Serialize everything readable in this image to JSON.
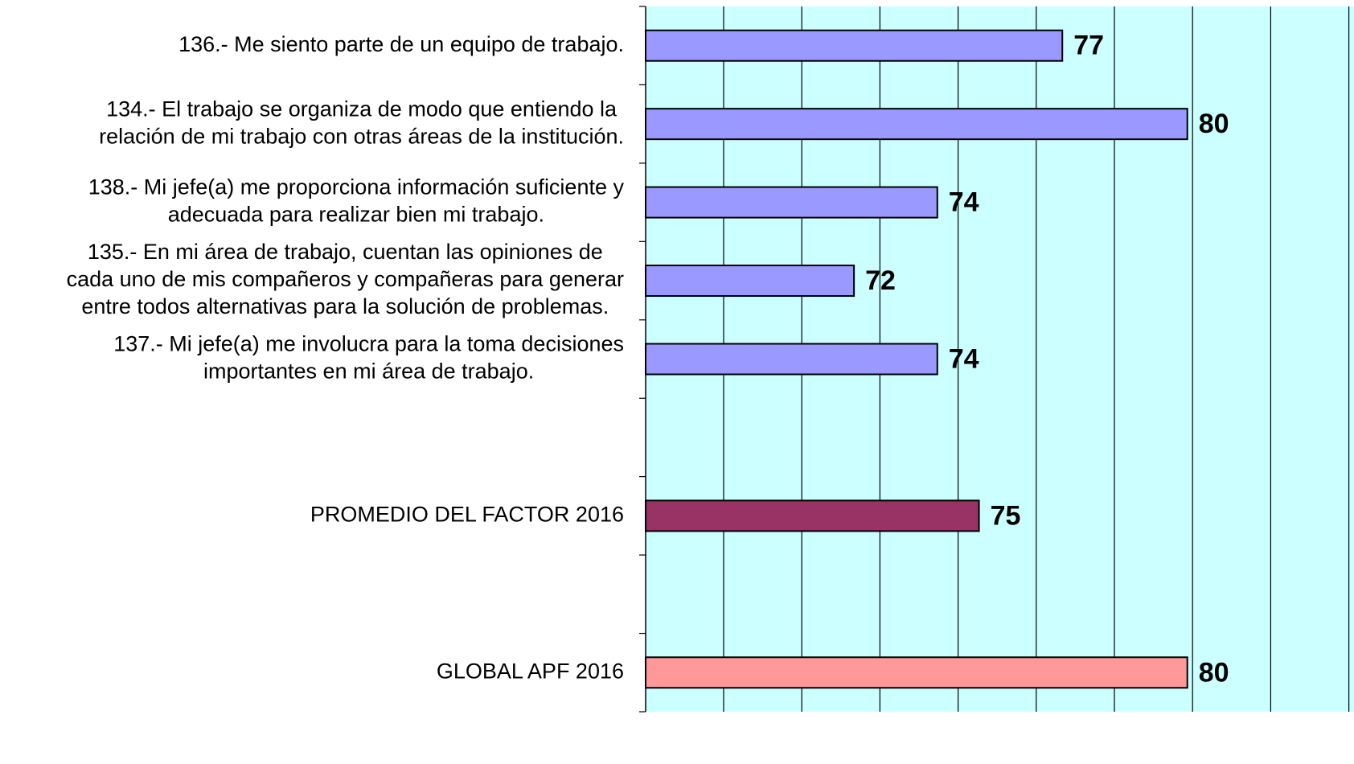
{
  "chart_data": {
    "type": "barh",
    "categories": [
      [
        "136.- Me siento parte de un equipo de trabajo."
      ],
      [
        "134.- El trabajo se organiza de modo que entiendo la",
        "relación de mi trabajo con otras áreas de la institución."
      ],
      [
        "138.- Mi jefe(a) me proporciona información suficiente y",
        "adecuada para realizar bien mi trabajo."
      ],
      [
        "135.- En mi área de trabajo, cuentan las opiniones de",
        "cada uno de mis compañeros y compañeras para generar",
        "entre todos alternativas para la solución de problemas."
      ],
      [
        "137.- Mi jefe(a) me involucra para la toma decisiones",
        "importantes en mi área de trabajo."
      ],
      null,
      [
        "PROMEDIO DEL FACTOR   2016"
      ],
      null,
      [
        "GLOBAL APF   2016"
      ]
    ],
    "values": [
      77,
      80,
      74,
      72,
      74,
      null,
      75,
      null,
      80
    ],
    "colors": [
      "#9999ff",
      "#9999ff",
      "#9999ff",
      "#9999ff",
      "#9999ff",
      null,
      "#993366",
      null,
      "#ff9999"
    ],
    "xlim": [
      67,
      84
    ],
    "grid": true
  }
}
